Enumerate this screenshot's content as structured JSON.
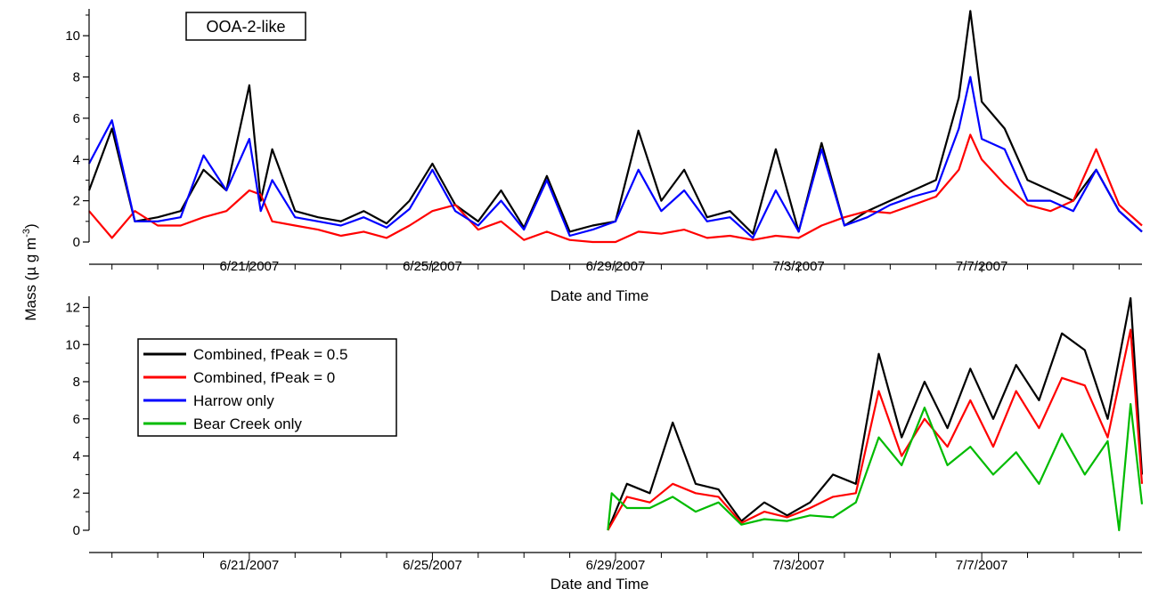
{
  "figure": {
    "ylabel": "Mass (µ g m",
    "ylabel_sup": "-3",
    "ylabel_close": ")"
  },
  "chart_data": [
    {
      "type": "line",
      "panel": "top",
      "annotation": "OOA-2-like",
      "xlabel": "Date and Time",
      "x_tick_labels": [
        "6/21/2007",
        "6/25/2007",
        "6/29/2007",
        "7/3/2007",
        "7/7/2007"
      ],
      "ylim": [
        0,
        11.3
      ],
      "y_ticks": [
        0,
        2,
        4,
        6,
        8,
        10
      ],
      "xlim": [
        "2007-06-17T12:00",
        "2007-07-10T12:00"
      ],
      "grid": false,
      "colors": {
        "combined_05": "#000000",
        "combined_0": "#ff0000",
        "harrow": "#0000ff",
        "bear_creek": "#00bb00"
      },
      "series": [
        {
          "name": "Combined, fPeak = 0.5",
          "color": "#000000",
          "x": [
            "2007-06-17T12:00",
            "2007-06-18T00:00",
            "2007-06-18T12:00",
            "2007-06-19T00:00",
            "2007-06-19T12:00",
            "2007-06-20T00:00",
            "2007-06-20T12:00",
            "2007-06-21T00:00",
            "2007-06-21T06:00",
            "2007-06-21T12:00",
            "2007-06-22T00:00",
            "2007-06-22T12:00",
            "2007-06-23T00:00",
            "2007-06-23T12:00",
            "2007-06-24T00:00",
            "2007-06-24T12:00",
            "2007-06-25T00:00",
            "2007-06-25T12:00",
            "2007-06-26T00:00",
            "2007-06-26T12:00",
            "2007-06-27T00:00",
            "2007-06-27T12:00",
            "2007-06-28T00:00",
            "2007-06-28T12:00",
            "2007-06-29T00:00",
            "2007-06-29T12:00",
            "2007-06-30T00:00",
            "2007-06-30T12:00",
            "2007-07-01T00:00",
            "2007-07-01T12:00",
            "2007-07-02T00:00",
            "2007-07-02T12:00",
            "2007-07-03T00:00",
            "2007-07-03T12:00",
            "2007-07-04T00:00",
            "2007-07-04T12:00",
            "2007-07-05T00:00",
            "2007-07-05T12:00",
            "2007-07-06T00:00",
            "2007-07-06T12:00",
            "2007-07-06T18:00",
            "2007-07-07T00:00",
            "2007-07-07T12:00",
            "2007-07-08T00:00",
            "2007-07-08T12:00",
            "2007-07-09T00:00",
            "2007-07-09T12:00",
            "2007-07-10T00:00",
            "2007-07-10T12:00"
          ],
          "values": [
            2.5,
            5.5,
            1.0,
            1.2,
            1.5,
            3.5,
            2.5,
            7.6,
            2.0,
            4.5,
            1.5,
            1.2,
            1.0,
            1.5,
            0.9,
            2.0,
            3.8,
            1.8,
            1.0,
            2.5,
            0.7,
            3.2,
            0.5,
            0.8,
            1.0,
            5.4,
            2.0,
            3.5,
            1.2,
            1.5,
            0.4,
            4.5,
            0.5,
            4.8,
            0.8,
            1.5,
            2.0,
            2.5,
            3.0,
            7.0,
            11.2,
            6.8,
            5.5,
            3.0,
            2.5,
            2.0,
            3.5,
            1.5,
            0.5
          ]
        },
        {
          "name": "Combined, fPeak = 0",
          "color": "#ff0000",
          "x": [
            "2007-06-17T12:00",
            "2007-06-18T00:00",
            "2007-06-18T12:00",
            "2007-06-19T00:00",
            "2007-06-19T12:00",
            "2007-06-20T00:00",
            "2007-06-20T12:00",
            "2007-06-21T00:00",
            "2007-06-21T06:00",
            "2007-06-21T12:00",
            "2007-06-22T00:00",
            "2007-06-22T12:00",
            "2007-06-23T00:00",
            "2007-06-23T12:00",
            "2007-06-24T00:00",
            "2007-06-24T12:00",
            "2007-06-25T00:00",
            "2007-06-25T12:00",
            "2007-06-26T00:00",
            "2007-06-26T12:00",
            "2007-06-27T00:00",
            "2007-06-27T12:00",
            "2007-06-28T00:00",
            "2007-06-28T12:00",
            "2007-06-29T00:00",
            "2007-06-29T12:00",
            "2007-06-30T00:00",
            "2007-06-30T12:00",
            "2007-07-01T00:00",
            "2007-07-01T12:00",
            "2007-07-02T00:00",
            "2007-07-02T12:00",
            "2007-07-03T00:00",
            "2007-07-03T12:00",
            "2007-07-04T00:00",
            "2007-07-04T12:00",
            "2007-07-05T00:00",
            "2007-07-05T12:00",
            "2007-07-06T00:00",
            "2007-07-06T12:00",
            "2007-07-06T18:00",
            "2007-07-07T00:00",
            "2007-07-07T12:00",
            "2007-07-08T00:00",
            "2007-07-08T12:00",
            "2007-07-09T00:00",
            "2007-07-09T12:00",
            "2007-07-10T00:00",
            "2007-07-10T12:00"
          ],
          "values": [
            1.5,
            0.2,
            1.5,
            0.8,
            0.8,
            1.2,
            1.5,
            2.5,
            2.3,
            1.0,
            0.8,
            0.6,
            0.3,
            0.5,
            0.2,
            0.8,
            1.5,
            1.8,
            0.6,
            1.0,
            0.1,
            0.5,
            0.1,
            0.0,
            0.0,
            0.5,
            0.4,
            0.6,
            0.2,
            0.3,
            0.1,
            0.3,
            0.2,
            0.8,
            1.2,
            1.5,
            1.4,
            1.8,
            2.2,
            3.5,
            5.2,
            4.0,
            2.8,
            1.8,
            1.5,
            2.0,
            4.5,
            1.8,
            0.8
          ]
        },
        {
          "name": "Harrow only",
          "color": "#0000ff",
          "x": [
            "2007-06-17T12:00",
            "2007-06-18T00:00",
            "2007-06-18T12:00",
            "2007-06-19T00:00",
            "2007-06-19T12:00",
            "2007-06-20T00:00",
            "2007-06-20T12:00",
            "2007-06-21T00:00",
            "2007-06-21T06:00",
            "2007-06-21T12:00",
            "2007-06-22T00:00",
            "2007-06-22T12:00",
            "2007-06-23T00:00",
            "2007-06-23T12:00",
            "2007-06-24T00:00",
            "2007-06-24T12:00",
            "2007-06-25T00:00",
            "2007-06-25T12:00",
            "2007-06-26T00:00",
            "2007-06-26T12:00",
            "2007-06-27T00:00",
            "2007-06-27T12:00",
            "2007-06-28T00:00",
            "2007-06-28T12:00",
            "2007-06-29T00:00",
            "2007-06-29T12:00",
            "2007-06-30T00:00",
            "2007-06-30T12:00",
            "2007-07-01T00:00",
            "2007-07-01T12:00",
            "2007-07-02T00:00",
            "2007-07-02T12:00",
            "2007-07-03T00:00",
            "2007-07-03T12:00",
            "2007-07-04T00:00",
            "2007-07-04T12:00",
            "2007-07-05T00:00",
            "2007-07-05T12:00",
            "2007-07-06T00:00",
            "2007-07-06T12:00",
            "2007-07-06T18:00",
            "2007-07-07T00:00",
            "2007-07-07T12:00",
            "2007-07-08T00:00",
            "2007-07-08T12:00",
            "2007-07-09T00:00",
            "2007-07-09T12:00",
            "2007-07-10T00:00",
            "2007-07-10T12:00"
          ],
          "values": [
            3.8,
            5.9,
            1.0,
            1.0,
            1.2,
            4.2,
            2.5,
            5.0,
            1.5,
            3.0,
            1.2,
            1.0,
            0.8,
            1.2,
            0.7,
            1.6,
            3.5,
            1.5,
            0.8,
            2.0,
            0.6,
            3.0,
            0.3,
            0.6,
            1.0,
            3.5,
            1.5,
            2.5,
            1.0,
            1.2,
            0.2,
            2.5,
            0.5,
            4.5,
            0.8,
            1.2,
            1.8,
            2.2,
            2.5,
            5.5,
            8.0,
            5.0,
            4.5,
            2.0,
            2.0,
            1.5,
            3.5,
            1.5,
            0.5
          ]
        }
      ]
    },
    {
      "type": "line",
      "panel": "bottom",
      "xlabel": "Date and Time",
      "x_tick_labels": [
        "6/21/2007",
        "6/25/2007",
        "6/29/2007",
        "7/3/2007",
        "7/7/2007"
      ],
      "ylim": [
        0,
        12.6
      ],
      "y_ticks": [
        0,
        2,
        4,
        6,
        8,
        10,
        12
      ],
      "xlim": [
        "2007-06-17T12:00",
        "2007-07-10T12:00"
      ],
      "grid": false,
      "legend": {
        "placement": "upper-left",
        "entries": [
          {
            "name": "Combined, fPeak = 0.5",
            "color": "#000000"
          },
          {
            "name": "Combined, fPeak = 0",
            "color": "#ff0000"
          },
          {
            "name": "Harrow only",
            "color": "#0000ff"
          },
          {
            "name": "Bear Creek only",
            "color": "#00bb00"
          }
        ]
      },
      "series": [
        {
          "name": "Combined, fPeak = 0.5",
          "color": "#000000",
          "x": [
            "2007-06-28T20:00",
            "2007-06-29T06:00",
            "2007-06-29T18:00",
            "2007-06-30T06:00",
            "2007-06-30T18:00",
            "2007-07-01T06:00",
            "2007-07-01T18:00",
            "2007-07-02T06:00",
            "2007-07-02T18:00",
            "2007-07-03T06:00",
            "2007-07-03T18:00",
            "2007-07-04T06:00",
            "2007-07-04T18:00",
            "2007-07-05T06:00",
            "2007-07-05T18:00",
            "2007-07-06T06:00",
            "2007-07-06T18:00",
            "2007-07-07T06:00",
            "2007-07-07T18:00",
            "2007-07-08T06:00",
            "2007-07-08T18:00",
            "2007-07-09T06:00",
            "2007-07-09T18:00",
            "2007-07-10T06:00",
            "2007-07-10T12:00"
          ],
          "values": [
            0.0,
            2.5,
            2.0,
            5.8,
            2.5,
            2.2,
            0.5,
            1.5,
            0.8,
            1.5,
            3.0,
            2.5,
            9.5,
            5.0,
            8.0,
            5.5,
            8.7,
            6.0,
            8.9,
            7.0,
            10.6,
            9.7,
            6.0,
            12.5,
            3.0
          ]
        },
        {
          "name": "Combined, fPeak = 0",
          "color": "#ff0000",
          "x": [
            "2007-06-28T20:00",
            "2007-06-29T06:00",
            "2007-06-29T18:00",
            "2007-06-30T06:00",
            "2007-06-30T18:00",
            "2007-07-01T06:00",
            "2007-07-01T18:00",
            "2007-07-02T06:00",
            "2007-07-02T18:00",
            "2007-07-03T06:00",
            "2007-07-03T18:00",
            "2007-07-04T06:00",
            "2007-07-04T18:00",
            "2007-07-05T06:00",
            "2007-07-05T18:00",
            "2007-07-06T06:00",
            "2007-07-06T18:00",
            "2007-07-07T06:00",
            "2007-07-07T18:00",
            "2007-07-08T06:00",
            "2007-07-08T18:00",
            "2007-07-09T06:00",
            "2007-07-09T18:00",
            "2007-07-10T06:00",
            "2007-07-10T12:00"
          ],
          "values": [
            0.0,
            1.8,
            1.5,
            2.5,
            2.0,
            1.8,
            0.4,
            1.0,
            0.7,
            1.2,
            1.8,
            2.0,
            7.5,
            4.0,
            6.0,
            4.5,
            7.0,
            4.5,
            7.5,
            5.5,
            8.2,
            7.8,
            5.0,
            10.8,
            2.5
          ]
        },
        {
          "name": "Bear Creek only",
          "color": "#00bb00",
          "x": [
            "2007-06-28T20:00",
            "2007-06-28T22:00",
            "2007-06-29T06:00",
            "2007-06-29T18:00",
            "2007-06-30T06:00",
            "2007-06-30T18:00",
            "2007-07-01T06:00",
            "2007-07-01T18:00",
            "2007-07-02T06:00",
            "2007-07-02T18:00",
            "2007-07-03T06:00",
            "2007-07-03T18:00",
            "2007-07-04T06:00",
            "2007-07-04T18:00",
            "2007-07-05T06:00",
            "2007-07-05T18:00",
            "2007-07-06T06:00",
            "2007-07-06T18:00",
            "2007-07-07T06:00",
            "2007-07-07T18:00",
            "2007-07-08T06:00",
            "2007-07-08T18:00",
            "2007-07-09T06:00",
            "2007-07-09T18:00",
            "2007-07-10T00:00",
            "2007-07-10T06:00",
            "2007-07-10T12:00"
          ],
          "values": [
            0.0,
            2.0,
            1.2,
            1.2,
            1.8,
            1.0,
            1.5,
            0.3,
            0.6,
            0.5,
            0.8,
            0.7,
            1.5,
            5.0,
            3.5,
            6.6,
            3.5,
            4.5,
            3.0,
            4.2,
            2.5,
            5.2,
            3.0,
            4.8,
            0.0,
            6.8,
            1.4
          ]
        }
      ]
    }
  ]
}
